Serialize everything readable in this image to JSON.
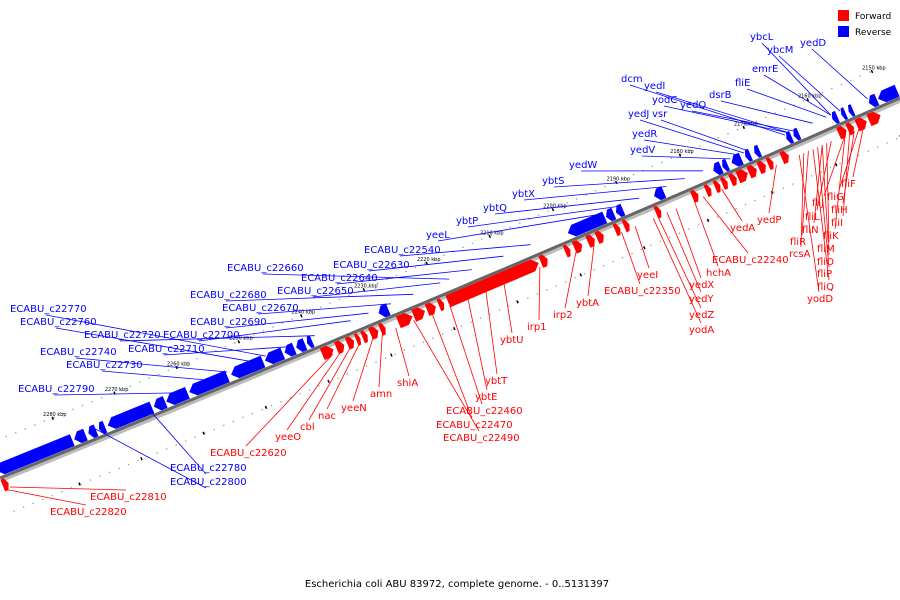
{
  "legend": {
    "forward_label": "Forward",
    "reverse_label": "Reverse",
    "forward_color": "#ff0000",
    "reverse_color": "#0000ff"
  },
  "caption": "Escherichia coli ABU 83972, complete genome. - 0..5131397",
  "axis": {
    "ticks": [
      "2150 kbp",
      "2160 kbp",
      "2170 kbp",
      "2180 kbp",
      "2190 kbp",
      "2200 kbp",
      "2210 kbp",
      "2220 kbp",
      "2230 kbp",
      "2240 kbp",
      "2250 kbp",
      "2260 kbp",
      "2270 kbp",
      "2280 kbp"
    ]
  },
  "reverse_labels": [
    "ybcL",
    "ybcM",
    "yedD",
    "emrE",
    "fliE",
    "dcm",
    "yedI",
    "yodC",
    "yedQ",
    "dsrB",
    "yedJ",
    "vsr",
    "yedR",
    "yedV",
    "yedW",
    "ybtS",
    "ybtX",
    "ybtQ",
    "ybtP",
    "yeeL",
    "ECABU_c22540",
    "ECABU_c22630",
    "ECABU_c22640",
    "ECABU_c22660",
    "ECABU_c22650",
    "ECABU_c22680",
    "ECABU_c22670",
    "ECABU_c22690",
    "ECABU_c22700",
    "ECABU_c22720",
    "ECABU_c22710",
    "ECABU_c22770",
    "ECABU_c22760",
    "ECABU_c22740",
    "ECABU_c22730",
    "ECABU_c22790",
    "ECABU_c22780",
    "ECABU_c22800"
  ],
  "forward_labels": [
    "fliF",
    "fliG",
    "fliH",
    "fliI",
    "fliJ",
    "fliK",
    "fliL",
    "fliM",
    "fliN",
    "fliO",
    "fliP",
    "fliQ",
    "yedP",
    "fliR",
    "rcsA",
    "yodD",
    "yedA",
    "ECABU_c22240",
    "hchA",
    "yedX",
    "yedY",
    "yedZ",
    "yodA",
    "yeeI",
    "ECABU_c22350",
    "ybtA",
    "irp2",
    "irp1",
    "ybtU",
    "ybtT",
    "ybtE",
    "ECABU_c22460",
    "ECABU_c22470",
    "ECABU_c22490",
    "shiA",
    "amn",
    "yeeN",
    "nac",
    "cbl",
    "yeeO",
    "ECABU_c22620",
    "ECABU_c22810",
    "ECABU_c22820"
  ]
}
